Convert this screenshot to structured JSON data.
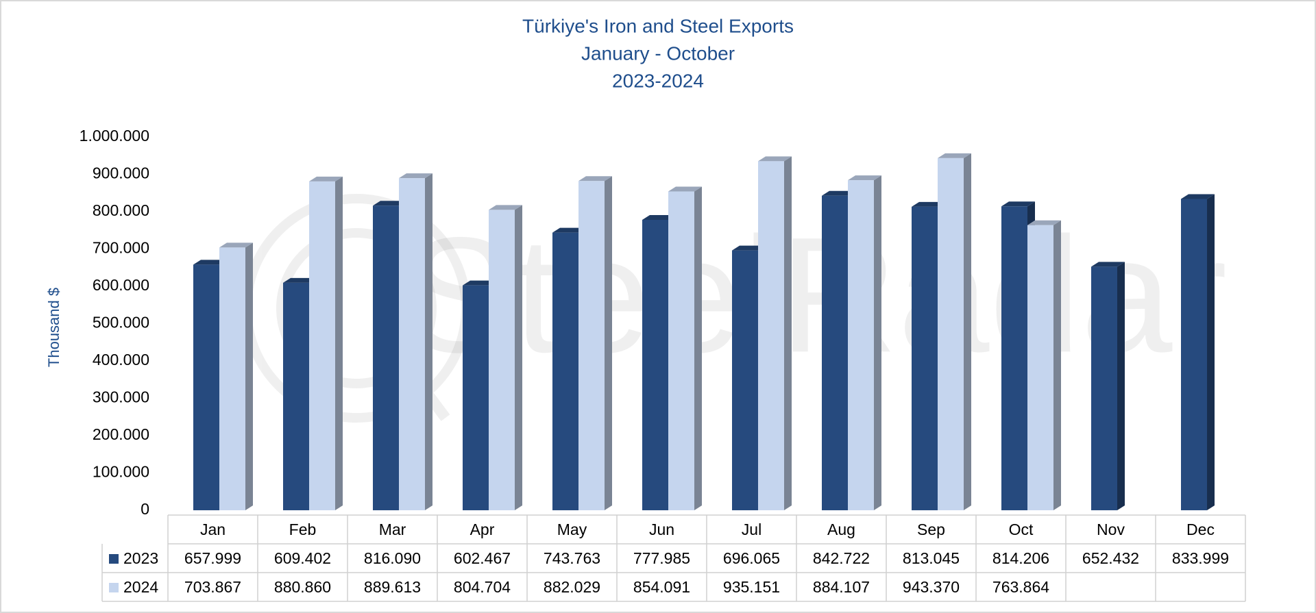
{
  "chart_data": {
    "type": "bar3d",
    "title": [
      "Türkiye's Iron and Steel Exports",
      "January - October",
      "2023-2024"
    ],
    "y_label": "Thousand $",
    "watermark": "SteelRadar",
    "categories": [
      "Jan",
      "Feb",
      "Mar",
      "Apr",
      "May",
      "Jun",
      "Jul",
      "Aug",
      "Sep",
      "Oct",
      "Nov",
      "Dec"
    ],
    "series": [
      {
        "name": "2023",
        "color": "#264a7e",
        "values": [
          657999,
          609402,
          816090,
          602467,
          743763,
          777985,
          696065,
          842722,
          813045,
          814206,
          652432,
          833999
        ],
        "value_labels": [
          "657.999",
          "609.402",
          "816.090",
          "602.467",
          "743.763",
          "777.985",
          "696.065",
          "842.722",
          "813.045",
          "814.206",
          "652.432",
          "833.999"
        ]
      },
      {
        "name": "2024",
        "color": "#c5d5ee",
        "values": [
          703867,
          880860,
          889613,
          804704,
          882029,
          854091,
          935151,
          884107,
          943370,
          763864,
          null,
          null
        ],
        "value_labels": [
          "703.867",
          "880.860",
          "889.613",
          "804.704",
          "882.029",
          "854.091",
          "935.151",
          "884.107",
          "943.370",
          "763.864",
          null,
          null
        ]
      }
    ],
    "ylim": [
      0,
      1000000
    ],
    "yticks": [
      0,
      {
        "value": 100000,
        "label": "100.000"
      },
      {
        "value": 200000,
        "label": "200.000"
      },
      {
        "value": 300000,
        "label": "300.000"
      },
      {
        "value": 400000,
        "label": "400.000"
      },
      {
        "value": 500000,
        "label": "500.000"
      },
      {
        "value": 600000,
        "label": "600.000"
      },
      {
        "value": 700000,
        "label": "700.000"
      },
      {
        "value": 800000,
        "label": "800.000"
      },
      {
        "value": 900000,
        "label": "900.000"
      },
      {
        "value": 1000000,
        "label": "1.000.000"
      }
    ],
    "grid": false
  }
}
